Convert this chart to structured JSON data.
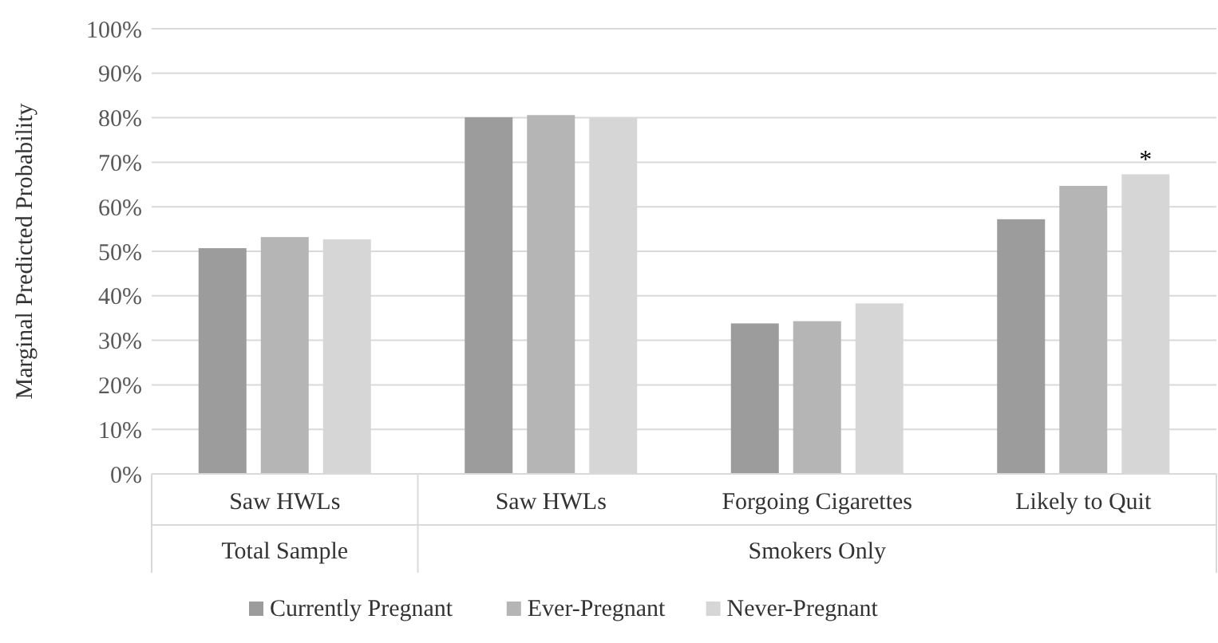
{
  "chart_data": {
    "type": "bar",
    "ylabel": "Marginal Predicted Probability",
    "categories": [
      "Saw HWLs",
      "Saw HWLs",
      "Forgoing Cigarettes",
      "Likely to Quit"
    ],
    "series": [
      {
        "name": "Currently Pregnant",
        "color": "#9c9c9c",
        "values": [
          50.7,
          80.1,
          33.8,
          57.2
        ]
      },
      {
        "name": "Ever-Pregnant",
        "color": "#b5b5b5",
        "values": [
          53.2,
          80.6,
          34.3,
          64.7
        ]
      },
      {
        "name": "Never-Pregnant",
        "color": "#d6d6d6",
        "values": [
          52.7,
          80,
          38.3,
          67.3
        ]
      }
    ],
    "ylim": [
      0,
      100
    ],
    "yticks": [
      {
        "value": 0,
        "label": "0%"
      },
      {
        "value": 10,
        "label": "10%"
      },
      {
        "value": 20,
        "label": "20%"
      },
      {
        "value": 30,
        "label": "30%"
      },
      {
        "value": 40,
        "label": "40%"
      },
      {
        "value": 50,
        "label": "50%"
      },
      {
        "value": 60,
        "label": "60%"
      },
      {
        "value": 70,
        "label": "70%"
      },
      {
        "value": 80,
        "label": "80%"
      },
      {
        "value": 90,
        "label": "90%"
      },
      {
        "value": 100,
        "label": "100%"
      }
    ],
    "grid": "y",
    "legend": "bottom",
    "annotations": [
      "*",
      "Total Sample",
      "Smokers Only"
    ]
  }
}
